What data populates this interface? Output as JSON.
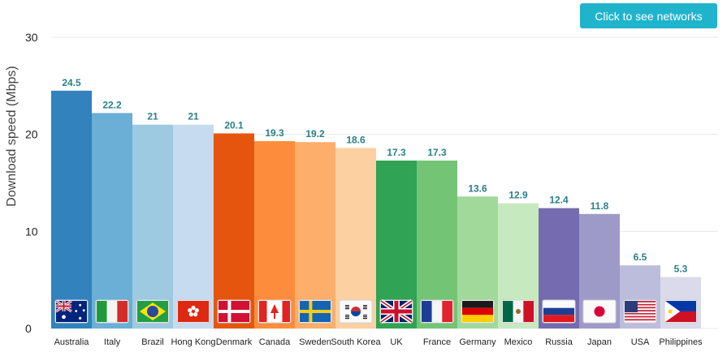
{
  "button": {
    "label": "Click to see networks"
  },
  "chart_data": {
    "type": "bar",
    "title": "",
    "xlabel": "",
    "ylabel": "Download speed (Mbps)",
    "ylim": [
      0,
      30
    ],
    "yticks": [
      0,
      10,
      20,
      30
    ],
    "grid": true,
    "categories": [
      "Australia",
      "Italy",
      "Brazil",
      "Hong Kong",
      "Denmark",
      "Canada",
      "Sweden",
      "South Korea",
      "UK",
      "France",
      "Germany",
      "Mexico",
      "Russia",
      "Japan",
      "USA",
      "Philippines"
    ],
    "values": [
      24.5,
      22.2,
      21,
      21,
      20.1,
      19.3,
      19.2,
      18.6,
      17.3,
      17.3,
      13.6,
      12.9,
      12.4,
      11.8,
      6.5,
      5.3
    ],
    "value_labels": [
      "24.5",
      "22.2",
      "21",
      "21",
      "20.1",
      "19.3",
      "19.2",
      "18.6",
      "17.3",
      "17.3",
      "13.6",
      "12.9",
      "12.4",
      "11.8",
      "6.5",
      "5.3"
    ],
    "colors": [
      "#3182bd",
      "#6baed6",
      "#9ecae1",
      "#c6dbef",
      "#e6550d",
      "#fd8d3c",
      "#fdae6b",
      "#fdd0a2",
      "#31a354",
      "#74c476",
      "#a1d99b",
      "#c7e9c0",
      "#756bb1",
      "#9e9ac8",
      "#bcbddc",
      "#dadaeb"
    ],
    "flags": [
      "australia-flag-icon",
      "italy-flag-icon",
      "brazil-flag-icon",
      "hong-kong-flag-icon",
      "denmark-flag-icon",
      "canada-flag-icon",
      "sweden-flag-icon",
      "south-korea-flag-icon",
      "uk-flag-icon",
      "france-flag-icon",
      "germany-flag-icon",
      "mexico-flag-icon",
      "russia-flag-icon",
      "japan-flag-icon",
      "usa-flag-icon",
      "philippines-flag-icon"
    ]
  }
}
